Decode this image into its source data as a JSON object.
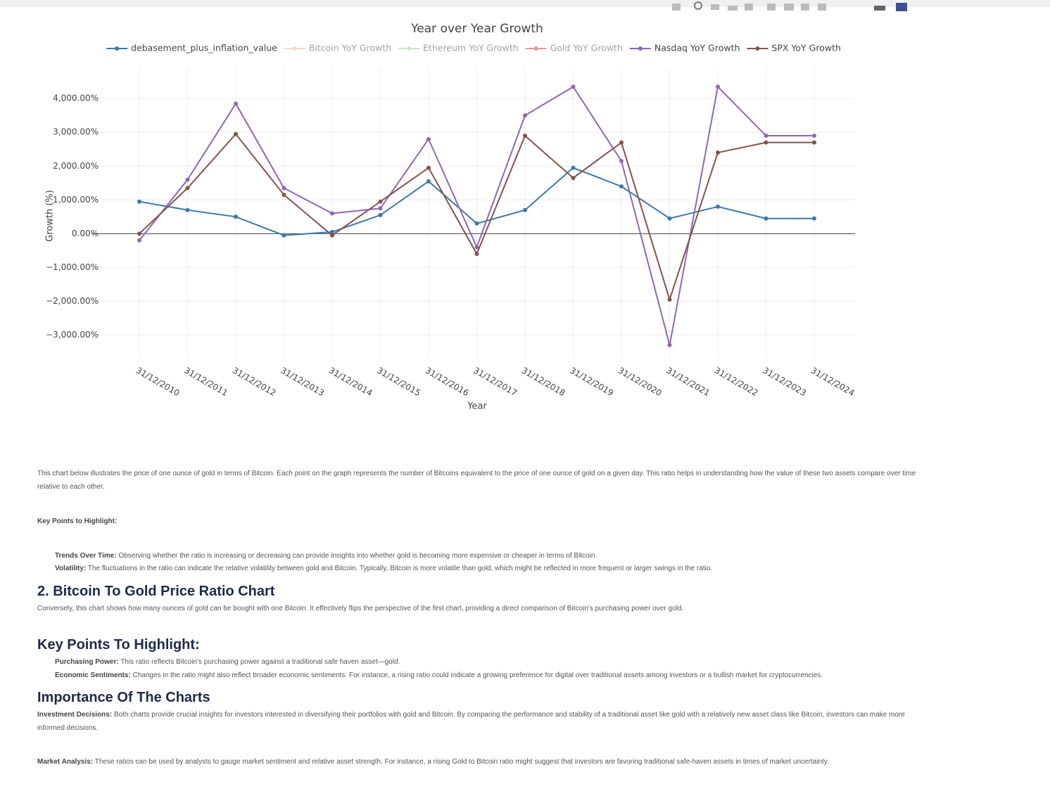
{
  "chart_data": {
    "type": "line",
    "title": "Year over Year Growth",
    "x_label": "Year",
    "y_label": "Growth (%)",
    "categories": [
      "31/12/2010",
      "31/12/2011",
      "31/12/2012",
      "31/12/2013",
      "31/12/2014",
      "31/12/2015",
      "31/12/2016",
      "31/12/2017",
      "31/12/2018",
      "31/12/2019",
      "31/12/2020",
      "31/12/2021",
      "31/12/2022",
      "31/12/2023",
      "31/12/2024"
    ],
    "series": [
      {
        "name": "debasement_plus_inflation_value",
        "color": "#3d77aa",
        "visible": true,
        "values": [
          950,
          700,
          500,
          -50,
          50,
          550,
          1550,
          300,
          700,
          1950,
          1400,
          450,
          800,
          450,
          450
        ]
      },
      {
        "name": "Bitcoin YoY Growth",
        "color": "#f5b98a",
        "visible": false
      },
      {
        "name": "Ethereum YoY Growth",
        "color": "#90cc8f",
        "visible": false
      },
      {
        "name": "Gold YoY Growth",
        "color": "#c83a2f",
        "visible": false
      },
      {
        "name": "Nasdaq YoY Growth",
        "color": "#8d67b4",
        "visible": true,
        "values": [
          -200,
          1600,
          3850,
          1350,
          600,
          750,
          2800,
          -400,
          3500,
          4350,
          2150,
          -3300,
          4350,
          2900,
          2900
        ]
      },
      {
        "name": "SPX YoY Growth",
        "color": "#84534a",
        "visible": true,
        "values": [
          0,
          1350,
          2950,
          1150,
          -50,
          950,
          1950,
          -600,
          2900,
          1650,
          2700,
          -1950,
          2400,
          2700,
          2700
        ]
      }
    ],
    "ylim": [
      -3700,
      4900
    ],
    "yticks": [
      {
        "value": -3000,
        "label": "−3,000.00%"
      },
      {
        "value": -2000,
        "label": "−2,000.00%"
      },
      {
        "value": -1000,
        "label": "−1,000.00%"
      },
      {
        "value": 0,
        "label": "0.00%"
      },
      {
        "value": 1000,
        "label": "1,000.00%"
      },
      {
        "value": 2000,
        "label": "2,000.00%"
      },
      {
        "value": 3000,
        "label": "3,000.00%"
      },
      {
        "value": 4000,
        "label": "4,000.00%"
      }
    ],
    "grid": true,
    "legend": "top"
  },
  "doc": {
    "intro": "This chart below illustrates the price of one ounce of gold in terms of Bitcoin. Each point on the graph represents the number of Bitcoins equivalent to the price of one ounce of gold on a given day. This ratio helps in understanding how the value of these two assets compare over time relative to each other.",
    "key_points_label": "Key Points to Highlight:",
    "key_points": [
      {
        "term": "Trends Over Time:",
        "text": "Observing whether the ratio is increasing or decreasing can provide insights into whether gold is becoming more expensive or cheaper in terms of Bitcoin."
      },
      {
        "term": "Volatility:",
        "text": "The fluctuations in the ratio can indicate the relative volatility between gold and Bitcoin. Typically, Bitcoin is more volatile than gold, which might be reflected in more frequent or larger swings in the ratio."
      }
    ],
    "section2": {
      "heading": "2. Bitcoin To Gold Price Ratio Chart",
      "text": "Conversely, this chart shows how many ounces of gold can be bought with one Bitcoin. It effectively flips the perspective of the first chart, providing a direct comparison of Bitcoin's purchasing power over gold."
    },
    "section3": {
      "heading": "Key Points To Highlight:",
      "items": [
        {
          "term": "Purchasing Power:",
          "text": "This ratio reflects Bitcoin's purchasing power against a traditional safe haven asset—gold."
        },
        {
          "term": "Economic Sentiments:",
          "text": "Changes in the ratio might also reflect broader economic sentiments. For instance, a rising ratio could indicate a growing preference for digital over traditional assets among investors or a bullish market for cryptocurrencies."
        }
      ]
    },
    "section4": {
      "heading": "Importance Of The Charts",
      "items": [
        {
          "term": "Investment Decisions:",
          "text": "Both charts provide crucial insights for investors interested in diversifying their portfolios with gold and Bitcoin. By comparing the performance and stability of a traditional asset like gold with a relatively new asset class like Bitcoin, investors can make more informed decisions."
        },
        {
          "term": "Market Analysis:",
          "text": "These ratios can be used by analysts to gauge market sentiment and relative asset strength. For instance, a rising Gold to Bitcoin ratio might suggest that investors are favoring traditional safe-haven assets in times of market uncertainty."
        }
      ]
    }
  }
}
